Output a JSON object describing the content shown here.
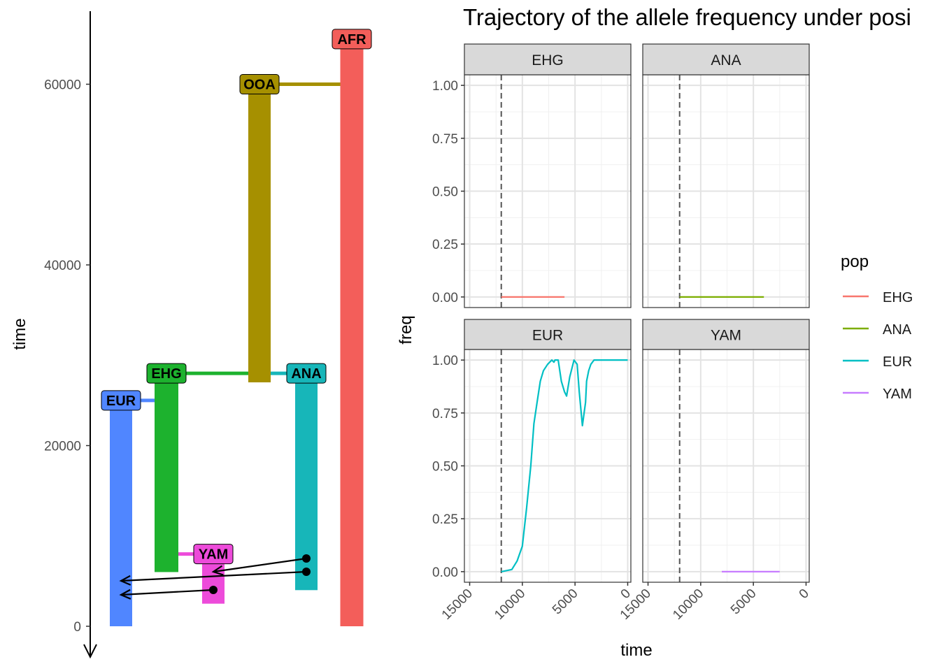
{
  "title": "Trajectory of the allele frequency under posi",
  "colors": {
    "AFR": "#F35E5A",
    "OOA": "#A69000",
    "EHG": "#1DB22E",
    "ANA": "#17B6B9",
    "EUR": "#5086FF",
    "YAM": "#ED4BDA"
  },
  "chart_data": [
    {
      "type": "tree",
      "ylabel": "time",
      "y_ticks": [
        0,
        20000,
        40000,
        60000
      ],
      "ylim": [
        0,
        68000
      ],
      "populations": [
        {
          "name": "AFR",
          "start": 65000,
          "end": 0,
          "parent": null,
          "split_time": null
        },
        {
          "name": "OOA",
          "start": 60000,
          "end": 27000,
          "parent": "AFR",
          "split_time": 60000
        },
        {
          "name": "EHG",
          "start": 28000,
          "end": 6000,
          "parent": "OOA",
          "split_time": 28000
        },
        {
          "name": "ANA",
          "start": 28000,
          "end": 4000,
          "parent": "OOA",
          "split_time": 28000
        },
        {
          "name": "EUR",
          "start": 25000,
          "end": 0,
          "parent": "EHG",
          "split_time": 25000
        },
        {
          "name": "YAM",
          "start": 8000,
          "end": 2500,
          "parent": "EHG",
          "split_time": 8000
        }
      ],
      "gene_flows": [
        {
          "from": "ANA",
          "to": "YAM",
          "start": 7500,
          "end": 6000
        },
        {
          "from": "ANA",
          "to": "EUR",
          "start": 6000,
          "end": 5000
        },
        {
          "from": "YAM",
          "to": "EUR",
          "start": 4000,
          "end": 3500
        }
      ]
    },
    {
      "type": "line",
      "title": "Trajectory of the allele frequency under posi",
      "xlabel": "time",
      "ylabel": "freq",
      "x_reversed": true,
      "xlim": [
        15500,
        -300
      ],
      "ylim": [
        -0.05,
        1.05
      ],
      "x_ticks": [
        15000,
        10000,
        5000,
        0
      ],
      "y_ticks": [
        "0.00",
        "0.25",
        "0.50",
        "0.75",
        "1.00"
      ],
      "vline": 12000,
      "legend_title": "pop",
      "legend": [
        "EHG",
        "ANA",
        "EUR",
        "YAM"
      ],
      "legend_colors": [
        "#F8766D",
        "#7CAE00",
        "#00BFC4",
        "#C77CFF"
      ],
      "facets": [
        {
          "name": "EHG",
          "color": "#F8766D",
          "x": [
            12000,
            6000
          ],
          "y": [
            0,
            0
          ]
        },
        {
          "name": "ANA",
          "color": "#7CAE00",
          "x": [
            12000,
            4000
          ],
          "y": [
            0,
            0
          ]
        },
        {
          "name": "EUR",
          "color": "#00BFC4",
          "x": [
            12000,
            11000,
            10500,
            10000,
            9600,
            9200,
            8900,
            8600,
            8300,
            8000,
            7600,
            7200,
            7000,
            6900,
            6600,
            6300,
            6000,
            5800,
            5500,
            5100,
            4800,
            4600,
            4300,
            4000,
            3900,
            3700,
            3500,
            3200,
            2900,
            2500,
            2000,
            1500,
            1000,
            500,
            0
          ],
          "y": [
            0,
            0.01,
            0.05,
            0.12,
            0.3,
            0.5,
            0.7,
            0.8,
            0.9,
            0.95,
            0.98,
            1.0,
            0.99,
            1.0,
            1.0,
            0.9,
            0.85,
            0.83,
            0.92,
            1.0,
            0.98,
            0.85,
            0.69,
            0.8,
            0.9,
            0.95,
            0.98,
            1.0,
            1.0,
            1.0,
            1.0,
            1.0,
            1.0,
            1.0,
            1.0
          ]
        },
        {
          "name": "YAM",
          "color": "#C77CFF",
          "x": [
            8000,
            2500
          ],
          "y": [
            0,
            0
          ]
        }
      ]
    }
  ]
}
